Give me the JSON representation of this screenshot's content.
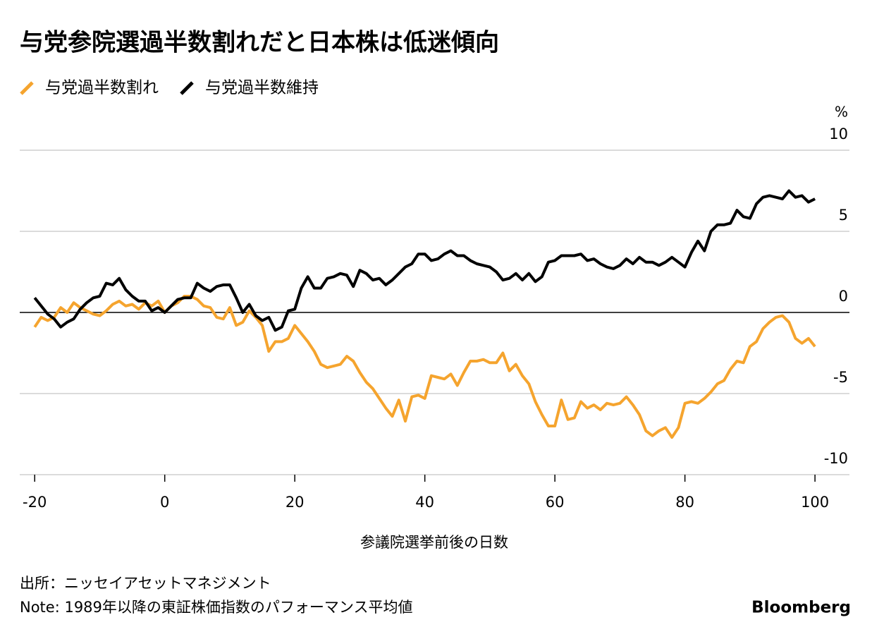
{
  "chart_data": {
    "type": "line",
    "title": "与党参院選過半数割れだと日本株は低迷傾向",
    "x_label": "参議院選挙前後の日数",
    "y_unit": "%",
    "source": "出所：ニッセイアセットマネジメント",
    "note": "Note: 1989年以降の東証株価指数のパフォーマンス平均値",
    "brand": "Bloomberg",
    "x": [
      -20,
      -19,
      -18,
      -17,
      -16,
      -15,
      -14,
      -13,
      -12,
      -11,
      -10,
      -9,
      -8,
      -7,
      -6,
      -5,
      -4,
      -3,
      -2,
      -1,
      0,
      1,
      2,
      3,
      4,
      5,
      6,
      7,
      8,
      9,
      10,
      11,
      12,
      13,
      14,
      15,
      16,
      17,
      18,
      19,
      20,
      21,
      22,
      23,
      24,
      25,
      26,
      27,
      28,
      29,
      30,
      31,
      32,
      33,
      34,
      35,
      36,
      37,
      38,
      39,
      40,
      41,
      42,
      43,
      44,
      45,
      46,
      47,
      48,
      49,
      50,
      51,
      52,
      53,
      54,
      55,
      56,
      57,
      58,
      59,
      60,
      61,
      62,
      63,
      64,
      65,
      66,
      67,
      68,
      69,
      70,
      71,
      72,
      73,
      74,
      75,
      76,
      77,
      78,
      79,
      80,
      81,
      82,
      83,
      84,
      85,
      86,
      87,
      88,
      89,
      90,
      91,
      92,
      93,
      94,
      95,
      96,
      97,
      98,
      99,
      100
    ],
    "series": [
      {
        "name": "与党過半数割れ",
        "color": "#f5a42e",
        "values": [
          -0.9,
          -0.3,
          -0.5,
          -0.3,
          0.3,
          0.0,
          0.6,
          0.3,
          0.1,
          -0.1,
          -0.2,
          0.1,
          0.5,
          0.7,
          0.4,
          0.5,
          0.2,
          0.6,
          0.4,
          0.7,
          0.0,
          0.4,
          0.6,
          1.0,
          1.0,
          0.8,
          0.4,
          0.3,
          -0.3,
          -0.4,
          0.3,
          -0.8,
          -0.6,
          0.1,
          -0.3,
          -0.8,
          -2.4,
          -1.8,
          -1.8,
          -1.6,
          -0.8,
          -1.3,
          -1.8,
          -2.4,
          -3.2,
          -3.4,
          -3.3,
          -3.2,
          -2.7,
          -3.0,
          -3.7,
          -4.3,
          -4.7,
          -5.3,
          -5.9,
          -6.4,
          -5.4,
          -6.7,
          -5.2,
          -5.1,
          -5.3,
          -3.9,
          -4.0,
          -4.1,
          -3.8,
          -4.5,
          -3.7,
          -3.0,
          -3.0,
          -2.9,
          -3.1,
          -3.1,
          -2.5,
          -3.6,
          -3.2,
          -3.9,
          -4.4,
          -5.5,
          -6.3,
          -7.0,
          -7.0,
          -5.4,
          -6.6,
          -6.5,
          -5.5,
          -5.9,
          -5.7,
          -6.0,
          -5.6,
          -5.7,
          -5.6,
          -5.2,
          -5.7,
          -6.3,
          -7.3,
          -7.6,
          -7.3,
          -7.1,
          -7.7,
          -7.1,
          -5.6,
          -5.5,
          -5.6,
          -5.3,
          -4.9,
          -4.4,
          -4.2,
          -3.5,
          -3.0,
          -3.1,
          -2.1,
          -1.8,
          -1.0,
          -0.6,
          -0.3,
          -0.2,
          -0.6,
          -1.6,
          -1.9,
          -1.6,
          -2.1
        ]
      },
      {
        "name": "与党過半数維持",
        "color": "#000000",
        "values": [
          0.9,
          0.4,
          -0.1,
          -0.4,
          -0.9,
          -0.6,
          -0.4,
          0.2,
          0.6,
          0.9,
          1.0,
          1.8,
          1.7,
          2.1,
          1.4,
          1.0,
          0.7,
          0.7,
          0.1,
          0.3,
          0.0,
          0.4,
          0.8,
          0.9,
          0.9,
          1.8,
          1.5,
          1.3,
          1.6,
          1.7,
          1.7,
          0.9,
          0.0,
          0.5,
          -0.2,
          -0.5,
          -0.3,
          -1.1,
          -0.9,
          0.1,
          0.2,
          1.5,
          2.2,
          1.5,
          1.5,
          2.1,
          2.2,
          2.4,
          2.3,
          1.6,
          2.6,
          2.4,
          2.0,
          2.1,
          1.7,
          2.0,
          2.4,
          2.8,
          3.0,
          3.6,
          3.6,
          3.2,
          3.3,
          3.6,
          3.8,
          3.5,
          3.5,
          3.2,
          3.0,
          2.9,
          2.8,
          2.5,
          2.0,
          2.1,
          2.4,
          2.0,
          2.4,
          1.9,
          2.2,
          3.1,
          3.2,
          3.5,
          3.5,
          3.5,
          3.6,
          3.2,
          3.3,
          3.0,
          2.8,
          2.7,
          2.9,
          3.3,
          3.0,
          3.4,
          3.1,
          3.1,
          2.9,
          3.1,
          3.4,
          3.1,
          2.8,
          3.7,
          4.4,
          3.8,
          5.0,
          5.4,
          5.4,
          5.5,
          6.3,
          5.9,
          5.8,
          6.7,
          7.1,
          7.2,
          7.1,
          7.0,
          7.5,
          7.1,
          7.2,
          6.8,
          7.0
        ]
      }
    ],
    "xlim": [
      -22.3,
      105.3
    ],
    "xticks": [
      -20,
      0,
      20,
      40,
      60,
      80,
      100
    ],
    "ylim": [
      -10,
      10
    ],
    "yticks": [
      -10,
      -5,
      0,
      5,
      10
    ],
    "grid": true,
    "legend": "top-left"
  }
}
